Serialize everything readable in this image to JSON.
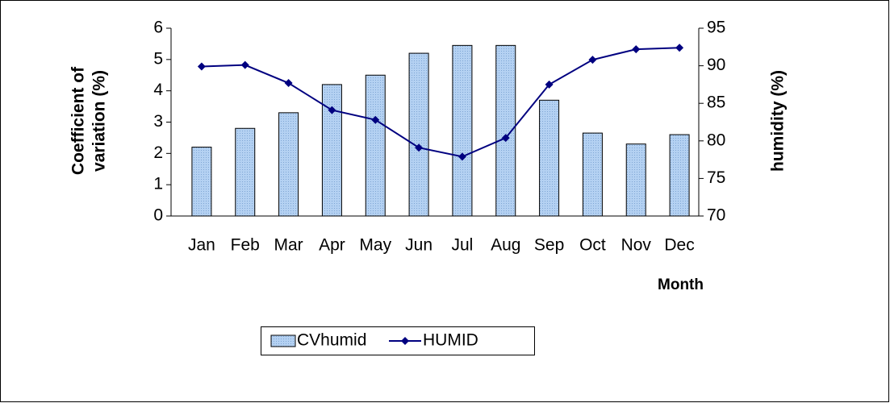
{
  "chart_data": {
    "type": "bar_line",
    "categories": [
      "Jan",
      "Feb",
      "Mar",
      "Apr",
      "May",
      "Jun",
      "Jul",
      "Aug",
      "Sep",
      "Oct",
      "Nov",
      "Dec"
    ],
    "series": [
      {
        "name": "CVhumid",
        "type": "bar",
        "color": "#a9c9ee",
        "values": [
          2.2,
          2.8,
          3.3,
          4.2,
          4.5,
          5.2,
          5.45,
          5.45,
          3.7,
          2.65,
          2.3,
          2.6
        ]
      },
      {
        "name": "HUMID",
        "type": "line",
        "axis": "y2",
        "color": "#000080",
        "values": [
          89.9,
          90.1,
          87.7,
          84.1,
          82.8,
          79.1,
          77.9,
          80.4,
          87.5,
          90.8,
          92.2,
          92.4
        ]
      }
    ],
    "y_label_lines": [
      "Coefficient of",
      "variation (%)"
    ],
    "y2_label": "humidity (%)",
    "x_label": "Month",
    "ylim": [
      0,
      6
    ],
    "yticks": [
      0,
      1,
      2,
      3,
      4,
      5,
      6
    ],
    "y2lim": [
      70,
      95
    ],
    "y2ticks": [
      70,
      75,
      80,
      85,
      90,
      95
    ],
    "legend": "bottom"
  }
}
